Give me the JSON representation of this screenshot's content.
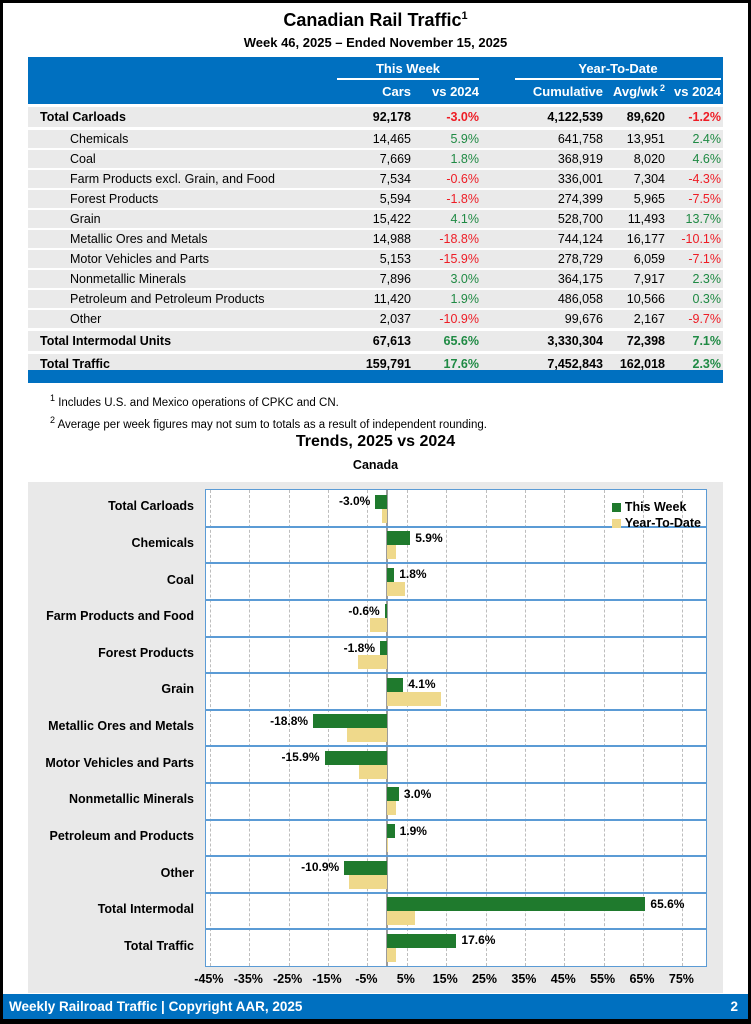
{
  "page": {
    "title": "Canadian Rail Traffic",
    "title_sup": "1",
    "subtitle": "Week 46, 2025 – Ended November 15, 2025",
    "footer_left": "Weekly Railroad Traffic | Copyright AAR, 2025",
    "footer_page": "2"
  },
  "table": {
    "group_headers": {
      "this_week": "This Week",
      "ytd": "Year-To-Date"
    },
    "col_headers": {
      "cars": "Cars",
      "vs2024_week": "vs 2024",
      "cumulative": "Cumulative",
      "avgwk": "Avg/wk",
      "avgwk_sup": "2",
      "vs2024_ytd": "vs 2024"
    },
    "rows": [
      {
        "label": "Total Carloads",
        "style": "total",
        "cars": "92,178",
        "vsw": "-3.0%",
        "cum": "4,122,539",
        "avg": "89,620",
        "vsy": "-1.2%"
      },
      {
        "label": "Chemicals",
        "style": "sub",
        "cars": "14,465",
        "vsw": "5.9%",
        "cum": "641,758",
        "avg": "13,951",
        "vsy": "2.4%"
      },
      {
        "label": "Coal",
        "style": "sub",
        "cars": "7,669",
        "vsw": "1.8%",
        "cum": "368,919",
        "avg": "8,020",
        "vsy": "4.6%"
      },
      {
        "label": "Farm Products excl. Grain, and Food",
        "style": "sub",
        "cars": "7,534",
        "vsw": "-0.6%",
        "cum": "336,001",
        "avg": "7,304",
        "vsy": "-4.3%"
      },
      {
        "label": "Forest Products",
        "style": "sub",
        "cars": "5,594",
        "vsw": "-1.8%",
        "cum": "274,399",
        "avg": "5,965",
        "vsy": "-7.5%"
      },
      {
        "label": "Grain",
        "style": "sub",
        "cars": "15,422",
        "vsw": "4.1%",
        "cum": "528,700",
        "avg": "11,493",
        "vsy": "13.7%"
      },
      {
        "label": "Metallic Ores and Metals",
        "style": "sub",
        "cars": "14,988",
        "vsw": "-18.8%",
        "cum": "744,124",
        "avg": "16,177",
        "vsy": "-10.1%"
      },
      {
        "label": "Motor Vehicles and Parts",
        "style": "sub",
        "cars": "5,153",
        "vsw": "-15.9%",
        "cum": "278,729",
        "avg": "6,059",
        "vsy": "-7.1%"
      },
      {
        "label": "Nonmetallic Minerals",
        "style": "sub",
        "cars": "7,896",
        "vsw": "3.0%",
        "cum": "364,175",
        "avg": "7,917",
        "vsy": "2.3%"
      },
      {
        "label": "Petroleum and Petroleum Products",
        "style": "sub",
        "cars": "11,420",
        "vsw": "1.9%",
        "cum": "486,058",
        "avg": "10,566",
        "vsy": "0.3%"
      },
      {
        "label": "Other",
        "style": "sub",
        "cars": "2,037",
        "vsw": "-10.9%",
        "cum": "99,676",
        "avg": "2,167",
        "vsy": "-9.7%"
      },
      {
        "label": "Total Intermodal Units",
        "style": "total",
        "cars": "67,613",
        "vsw": "65.6%",
        "cum": "3,330,304",
        "avg": "72,398",
        "vsy": "7.1%"
      },
      {
        "label": "Total Traffic",
        "style": "total",
        "cars": "159,791",
        "vsw": "17.6%",
        "cum": "7,452,843",
        "avg": "162,018",
        "vsy": "2.3%"
      }
    ]
  },
  "footnotes": [
    {
      "sup": "1",
      "text": "Includes U.S. and Mexico operations of CPKC and CN."
    },
    {
      "sup": "2",
      "text": "Average per week figures may not sum to totals as a result of independent rounding."
    }
  ],
  "chart_data": {
    "type": "bar",
    "orientation": "horizontal",
    "title": "Trends, 2025 vs 2024",
    "subtitle": "Canada",
    "categories": [
      "Total Carloads",
      "Chemicals",
      "Coal",
      "Farm Products and Food",
      "Forest Products",
      "Grain",
      "Metallic Ores and Metals",
      "Motor Vehicles and Parts",
      "Nonmetallic Minerals",
      "Petroleum and Products",
      "Other",
      "Total Intermodal",
      "Total Traffic"
    ],
    "series": [
      {
        "name": "This Week",
        "color": "#1f7a2d",
        "values": [
          -3.0,
          5.9,
          1.8,
          -0.6,
          -1.8,
          4.1,
          -18.8,
          -15.9,
          3.0,
          1.9,
          -10.9,
          65.6,
          17.6
        ]
      },
      {
        "name": "Year-To-Date",
        "color": "#efd98b",
        "values": [
          -1.2,
          2.4,
          4.6,
          -4.3,
          -7.5,
          13.7,
          -10.1,
          -7.1,
          2.3,
          0.3,
          -9.7,
          7.1,
          2.3
        ]
      }
    ],
    "data_labels_series": "This Week",
    "xlim": [
      -46,
      81
    ],
    "ticks": [
      -45,
      -35,
      -25,
      -15,
      -5,
      5,
      15,
      25,
      35,
      45,
      55,
      65,
      75
    ],
    "tick_suffix": "%",
    "grid": "vertical-dashed",
    "legend_position": "top-right"
  },
  "colors": {
    "header_blue": "#0070c0",
    "band_line_blue": "#5b9bd5",
    "bar_green": "#1f7a2d",
    "bar_tan": "#efd98b",
    "pct_green": "#1f8a44",
    "pct_red": "#ee1c25",
    "row_gray": "#eaeaea",
    "panel_gray": "#e9e9e9"
  }
}
